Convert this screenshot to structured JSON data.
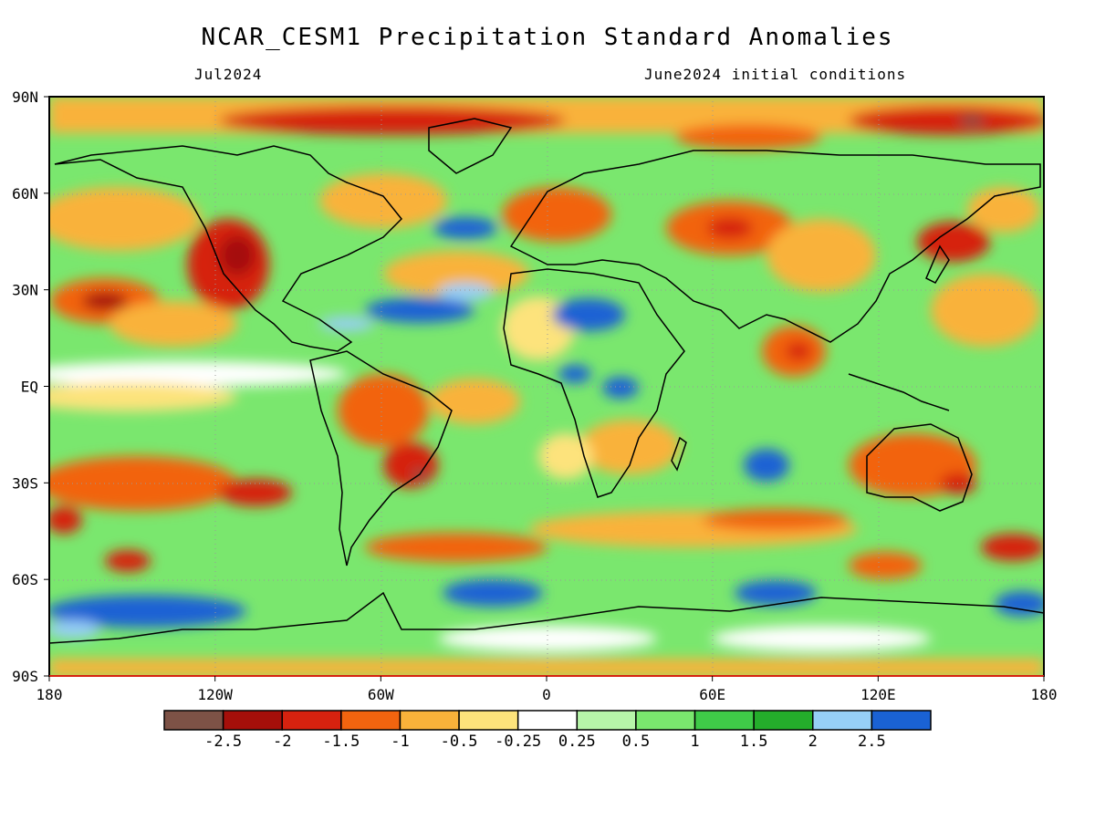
{
  "title": "NCAR_CESM1 Precipitation Standard Anomalies",
  "subtitle_left": "Jul2024",
  "subtitle_right": "June2024 initial conditions",
  "lat_labels": [
    "90N",
    "60N",
    "30N",
    "EQ",
    "30S",
    "60S",
    "90S"
  ],
  "lon_labels": [
    "180",
    "120W",
    "60W",
    "0",
    "60E",
    "120E",
    "180"
  ],
  "colorbar": {
    "colors": [
      "#7d5246",
      "#a50f0a",
      "#d6220f",
      "#f2640f",
      "#f9b23a",
      "#fde37b",
      "#ffffff",
      "#b7f5a9",
      "#7ae76e",
      "#3fcb48",
      "#24ad2b",
      "#96cff6",
      "#1a62d4"
    ],
    "labels": [
      "-2.5",
      "-2",
      "-1.5",
      "-1",
      "-0.5",
      "-0.25",
      "0.25",
      "0.5",
      "1",
      "1.5",
      "2",
      "2.5"
    ]
  },
  "map_colors": {
    "background": "#7ae76e",
    "coast": "#000000",
    "frame_bottom": "#d6220f",
    "gridline": "#9a9a9a"
  }
}
